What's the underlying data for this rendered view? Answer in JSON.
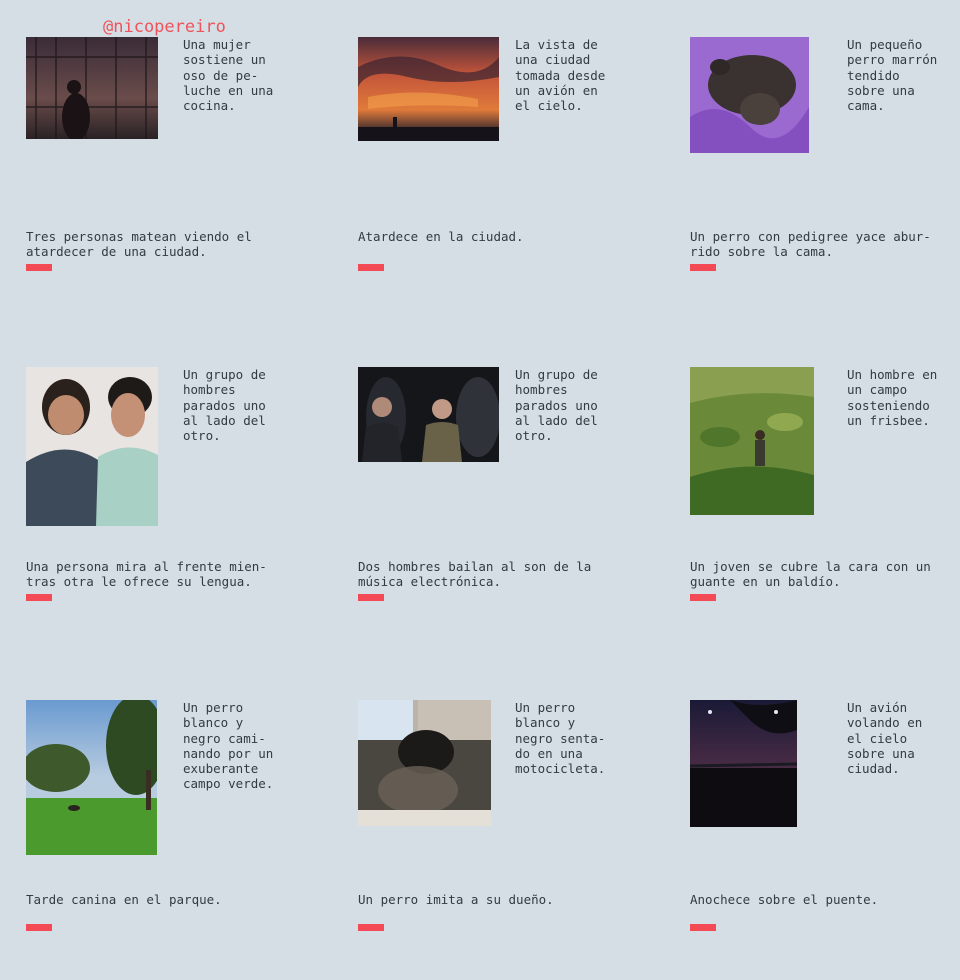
{
  "header": {
    "handle": "@nicopereiro"
  },
  "accent_color": "#f44a55",
  "cards": [
    {
      "image": "balcony-sunset-person-photo",
      "auto_caption": "Una mujer\nsostiene un\noso de pe-\nluche en una\ncocina.",
      "human_caption": "Tres personas matean viendo el\natardecer de una ciudad."
    },
    {
      "image": "city-sunset-sky-photo",
      "auto_caption": "La vista de\nuna ciudad\ntomada desde\nun avión en\nel cielo.",
      "human_caption": "Atardece en la ciudad."
    },
    {
      "image": "dog-on-purple-bed-photo",
      "auto_caption": "Un pequeño\nperro marrón\ntendido\nsobre una\ncama.",
      "human_caption": "Un perro con pedigree yace abur-\nrido sobre la cama."
    },
    {
      "image": "two-men-selfie-photo",
      "auto_caption": "Un grupo de\nhombres\nparados uno\nal lado del\notro.",
      "human_caption": "Una persona mira al frente mien-\ntras otra le ofrece su lengua."
    },
    {
      "image": "party-crowd-photo",
      "auto_caption": "Un grupo de\nhombres\nparados uno\nal lado del\notro.",
      "human_caption": "Dos hombres bailan al son de la\nmúsica electrónica."
    },
    {
      "image": "man-in-field-photo",
      "auto_caption": "Un hombre en\nun campo\nsosteniendo\nun frisbee.",
      "human_caption": "Un joven se cubre la cara con un\nguante en un baldío."
    },
    {
      "image": "park-dog-photo",
      "auto_caption": "Un perro\nblanco y\nnegro cami-\nnando por un\nexuberante\ncampo verde.",
      "human_caption": "Tarde canina en el parque."
    },
    {
      "image": "dog-with-helmet-photo",
      "auto_caption": "Un perro\nblanco y\nnegro senta-\ndo en una\nmotocicleta.",
      "human_caption": "Un perro imita a su dueño."
    },
    {
      "image": "night-bridge-photo",
      "auto_caption": "Un avión\nvolando en\nel cielo\nsobre una\nciudad.",
      "human_caption": "Anochece sobre el puente."
    }
  ]
}
